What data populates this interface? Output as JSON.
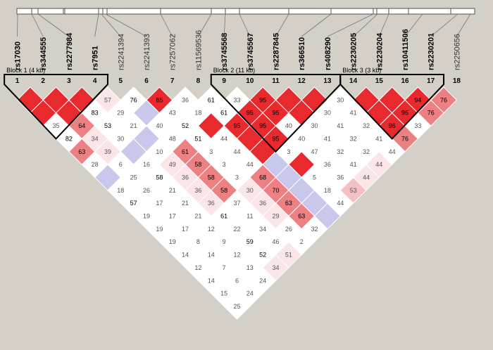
{
  "snps": [
    {
      "name": "rs17030",
      "index": "1",
      "bold": true
    },
    {
      "name": "rs344555",
      "index": "2",
      "bold": true
    },
    {
      "name": "rs2277984",
      "index": "3",
      "bold": true
    },
    {
      "name": "rs7951",
      "index": "4",
      "bold": true
    },
    {
      "name": "rs2241394",
      "index": "5",
      "bold": false
    },
    {
      "name": "rs2241393",
      "index": "6",
      "bold": false
    },
    {
      "name": "rs7257062",
      "index": "7",
      "bold": false
    },
    {
      "name": "rs11569536",
      "index": "8",
      "bold": false
    },
    {
      "name": "rs3745568",
      "index": "9",
      "bold": true
    },
    {
      "name": "rs3745567",
      "index": "10",
      "bold": true
    },
    {
      "name": "rs2287845",
      "index": "11",
      "bold": true
    },
    {
      "name": "rs366510",
      "index": "12",
      "bold": true
    },
    {
      "name": "rs408290",
      "index": "13",
      "bold": true
    },
    {
      "name": "rs2230205",
      "index": "14",
      "bold": true
    },
    {
      "name": "rs2230204",
      "index": "15",
      "bold": true
    },
    {
      "name": "rs10411506",
      "index": "16",
      "bold": true
    },
    {
      "name": "rs2230201",
      "index": "17",
      "bold": true
    },
    {
      "name": "rs2250656",
      "index": "18",
      "bold": false
    }
  ],
  "blocks": [
    {
      "label": "Block 1 (4 kb)",
      "from": 1,
      "to": 4
    },
    {
      "label": "Block 2 (11 kb)",
      "from": 9,
      "to": 13
    },
    {
      "label": "Block 3 (3 kb)",
      "from": 14,
      "to": 17
    }
  ],
  "colors": {
    "strong": "#e8292e",
    "medium": "#ed8082",
    "light": "#f4c0c2",
    "faint": "#fbe6e7",
    "blue": "#c7c8ec",
    "white": "#ffffff",
    "background": "#d4d0c8"
  },
  "chart_data": {
    "type": "heatmap",
    "title": "",
    "cells": [
      {
        "i": 1,
        "j": 2,
        "value": "",
        "color": "strong"
      },
      {
        "i": 2,
        "j": 3,
        "value": "",
        "color": "strong"
      },
      {
        "i": 3,
        "j": 4,
        "value": "",
        "color": "strong"
      },
      {
        "i": 4,
        "j": 5,
        "value": "57",
        "color": "faint"
      },
      {
        "i": 5,
        "j": 6,
        "value": "76",
        "color": "white"
      },
      {
        "i": 6,
        "j": 7,
        "value": "85",
        "color": "strong"
      },
      {
        "i": 7,
        "j": 8,
        "value": "36",
        "color": "white"
      },
      {
        "i": 8,
        "j": 9,
        "value": "61",
        "color": "white"
      },
      {
        "i": 9,
        "j": 10,
        "value": "33",
        "color": "white"
      },
      {
        "i": 10,
        "j": 11,
        "value": "95",
        "color": "strong"
      },
      {
        "i": 11,
        "j": 12,
        "value": "",
        "color": "strong"
      },
      {
        "i": 12,
        "j": 13,
        "value": "",
        "color": "strong"
      },
      {
        "i": 13,
        "j": 14,
        "value": "30",
        "color": "white"
      },
      {
        "i": 14,
        "j": 15,
        "value": "",
        "color": "strong"
      },
      {
        "i": 15,
        "j": 16,
        "value": "",
        "color": "strong"
      },
      {
        "i": 16,
        "j": 17,
        "value": "94",
        "color": "strong"
      },
      {
        "i": 17,
        "j": 18,
        "value": "76",
        "color": "medium"
      },
      {
        "i": 1,
        "j": 3,
        "value": "",
        "color": "strong"
      },
      {
        "i": 2,
        "j": 4,
        "value": "",
        "color": "strong"
      },
      {
        "i": 3,
        "j": 5,
        "value": "83",
        "color": "white"
      },
      {
        "i": 4,
        "j": 6,
        "value": "29",
        "color": "white"
      },
      {
        "i": 5,
        "j": 7,
        "value": "",
        "color": "blue"
      },
      {
        "i": 6,
        "j": 8,
        "value": "43",
        "color": "white"
      },
      {
        "i": 7,
        "j": 9,
        "value": "18",
        "color": "white"
      },
      {
        "i": 8,
        "j": 10,
        "value": "61",
        "color": "white"
      },
      {
        "i": 9,
        "j": 11,
        "value": "95",
        "color": "strong"
      },
      {
        "i": 10,
        "j": 12,
        "value": "95",
        "color": "strong"
      },
      {
        "i": 11,
        "j": 13,
        "value": "",
        "color": "strong"
      },
      {
        "i": 12,
        "j": 14,
        "value": "30",
        "color": "white"
      },
      {
        "i": 13,
        "j": 15,
        "value": "41",
        "color": "white"
      },
      {
        "i": 14,
        "j": 16,
        "value": "",
        "color": "strong"
      },
      {
        "i": 15,
        "j": 17,
        "value": "95",
        "color": "strong"
      },
      {
        "i": 16,
        "j": 18,
        "value": "76",
        "color": "medium"
      },
      {
        "i": 1,
        "j": 4,
        "value": "35",
        "color": "white"
      },
      {
        "i": 2,
        "j": 5,
        "value": "64",
        "color": "medium"
      },
      {
        "i": 3,
        "j": 6,
        "value": "53",
        "color": "white"
      },
      {
        "i": 4,
        "j": 7,
        "value": "21",
        "color": "white"
      },
      {
        "i": 5,
        "j": 8,
        "value": "40",
        "color": "white"
      },
      {
        "i": 6,
        "j": 9,
        "value": "52",
        "color": "white"
      },
      {
        "i": 7,
        "j": 10,
        "value": "",
        "color": "strong"
      },
      {
        "i": 8,
        "j": 11,
        "value": "95",
        "color": "strong"
      },
      {
        "i": 9,
        "j": 12,
        "value": "95",
        "color": "strong"
      },
      {
        "i": 10,
        "j": 13,
        "value": "40",
        "color": "white"
      },
      {
        "i": 11,
        "j": 14,
        "value": "30",
        "color": "white"
      },
      {
        "i": 12,
        "j": 15,
        "value": "41",
        "color": "white"
      },
      {
        "i": 13,
        "j": 16,
        "value": "32",
        "color": "white"
      },
      {
        "i": 14,
        "j": 17,
        "value": "96",
        "color": "strong"
      },
      {
        "i": 15,
        "j": 18,
        "value": "33",
        "color": "white"
      },
      {
        "i": 1,
        "j": 5,
        "value": "82",
        "color": "white"
      },
      {
        "i": 2,
        "j": 6,
        "value": "34",
        "color": "faint"
      },
      {
        "i": 3,
        "j": 7,
        "value": "30",
        "color": "white"
      },
      {
        "i": 4,
        "j": 8,
        "value": "",
        "color": "blue"
      },
      {
        "i": 5,
        "j": 9,
        "value": "48",
        "color": "white"
      },
      {
        "i": 6,
        "j": 10,
        "value": "51",
        "color": "white"
      },
      {
        "i": 7,
        "j": 11,
        "value": "44",
        "color": "white"
      },
      {
        "i": 8,
        "j": 12,
        "value": "",
        "color": "strong"
      },
      {
        "i": 9,
        "j": 13,
        "value": "95",
        "color": "strong"
      },
      {
        "i": 10,
        "j": 14,
        "value": "40",
        "color": "white"
      },
      {
        "i": 11,
        "j": 15,
        "value": "41",
        "color": "white"
      },
      {
        "i": 12,
        "j": 16,
        "value": "32",
        "color": "white"
      },
      {
        "i": 13,
        "j": 17,
        "value": "41",
        "color": "white"
      },
      {
        "i": 14,
        "j": 18,
        "value": "76",
        "color": "medium"
      },
      {
        "i": 1,
        "j": 6,
        "value": "63",
        "color": "medium"
      },
      {
        "i": 2,
        "j": 7,
        "value": "39",
        "color": "faint"
      },
      {
        "i": 3,
        "j": 8,
        "value": "",
        "color": "blue"
      },
      {
        "i": 4,
        "j": 9,
        "value": "10",
        "color": "white"
      },
      {
        "i": 5,
        "j": 10,
        "value": "61",
        "color": "medium"
      },
      {
        "i": 6,
        "j": 11,
        "value": "3",
        "color": "white"
      },
      {
        "i": 7,
        "j": 12,
        "value": "44",
        "color": "white"
      },
      {
        "i": 8,
        "j": 13,
        "value": "",
        "color": "strong"
      },
      {
        "i": 9,
        "j": 14,
        "value": "3",
        "color": "white"
      },
      {
        "i": 10,
        "j": 15,
        "value": "47",
        "color": "white"
      },
      {
        "i": 11,
        "j": 16,
        "value": "32",
        "color": "white"
      },
      {
        "i": 12,
        "j": 17,
        "value": "32",
        "color": "white"
      },
      {
        "i": 13,
        "j": 18,
        "value": "44",
        "color": "white"
      },
      {
        "i": 1,
        "j": 7,
        "value": "28",
        "color": "white"
      },
      {
        "i": 2,
        "j": 8,
        "value": "6",
        "color": "white"
      },
      {
        "i": 3,
        "j": 9,
        "value": "16",
        "color": "white"
      },
      {
        "i": 4,
        "j": 10,
        "value": "49",
        "color": "faint"
      },
      {
        "i": 5,
        "j": 11,
        "value": "58",
        "color": "medium"
      },
      {
        "i": 6,
        "j": 12,
        "value": "3",
        "color": "white"
      },
      {
        "i": 7,
        "j": 13,
        "value": "44",
        "color": "white"
      },
      {
        "i": 8,
        "j": 14,
        "value": "",
        "color": "blue"
      },
      {
        "i": 9,
        "j": 15,
        "value": "",
        "color": "strong"
      },
      {
        "i": 10,
        "j": 16,
        "value": "36",
        "color": "white"
      },
      {
        "i": 11,
        "j": 17,
        "value": "41",
        "color": "white"
      },
      {
        "i": 12,
        "j": 18,
        "value": "44",
        "color": "faint"
      },
      {
        "i": 1,
        "j": 8,
        "value": "",
        "color": "blue"
      },
      {
        "i": 2,
        "j": 9,
        "value": "25",
        "color": "white"
      },
      {
        "i": 3,
        "j": 10,
        "value": "58",
        "color": "white"
      },
      {
        "i": 4,
        "j": 11,
        "value": "36",
        "color": "faint"
      },
      {
        "i": 5,
        "j": 12,
        "value": "58",
        "color": "medium"
      },
      {
        "i": 6,
        "j": 13,
        "value": "3",
        "color": "white"
      },
      {
        "i": 7,
        "j": 14,
        "value": "68",
        "color": "medium"
      },
      {
        "i": 8,
        "j": 15,
        "value": "",
        "color": "blue"
      },
      {
        "i": 9,
        "j": 16,
        "value": "5",
        "color": "white"
      },
      {
        "i": 10,
        "j": 17,
        "value": "36",
        "color": "white"
      },
      {
        "i": 11,
        "j": 18,
        "value": "44",
        "color": "faint"
      },
      {
        "i": 1,
        "j": 9,
        "value": "18",
        "color": "white"
      },
      {
        "i": 2,
        "j": 10,
        "value": "26",
        "color": "white"
      },
      {
        "i": 3,
        "j": 11,
        "value": "21",
        "color": "white"
      },
      {
        "i": 4,
        "j": 12,
        "value": "36",
        "color": "faint"
      },
      {
        "i": 5,
        "j": 13,
        "value": "58",
        "color": "medium"
      },
      {
        "i": 6,
        "j": 14,
        "value": "30",
        "color": "faint"
      },
      {
        "i": 7,
        "j": 15,
        "value": "70",
        "color": "medium"
      },
      {
        "i": 8,
        "j": 16,
        "value": "",
        "color": "blue"
      },
      {
        "i": 9,
        "j": 17,
        "value": "18",
        "color": "white"
      },
      {
        "i": 10,
        "j": 18,
        "value": "53",
        "color": "light"
      },
      {
        "i": 1,
        "j": 10,
        "value": "57",
        "color": "white"
      },
      {
        "i": 2,
        "j": 11,
        "value": "17",
        "color": "white"
      },
      {
        "i": 3,
        "j": 12,
        "value": "21",
        "color": "white"
      },
      {
        "i": 4,
        "j": 13,
        "value": "36",
        "color": "faint"
      },
      {
        "i": 5,
        "j": 14,
        "value": "37",
        "color": "white"
      },
      {
        "i": 6,
        "j": 15,
        "value": "36",
        "color": "faint"
      },
      {
        "i": 7,
        "j": 16,
        "value": "63",
        "color": "medium"
      },
      {
        "i": 8,
        "j": 17,
        "value": "",
        "color": "blue"
      },
      {
        "i": 9,
        "j": 18,
        "value": "44",
        "color": "white"
      },
      {
        "i": 1,
        "j": 11,
        "value": "19",
        "color": "white"
      },
      {
        "i": 2,
        "j": 12,
        "value": "17",
        "color": "white"
      },
      {
        "i": 3,
        "j": 13,
        "value": "21",
        "color": "white"
      },
      {
        "i": 4,
        "j": 14,
        "value": "61",
        "color": "white"
      },
      {
        "i": 5,
        "j": 15,
        "value": "11",
        "color": "white"
      },
      {
        "i": 6,
        "j": 16,
        "value": "29",
        "color": "faint"
      },
      {
        "i": 7,
        "j": 17,
        "value": "63",
        "color": "medium"
      },
      {
        "i": 8,
        "j": 18,
        "value": "",
        "color": "blue"
      },
      {
        "i": 1,
        "j": 12,
        "value": "19",
        "color": "white"
      },
      {
        "i": 2,
        "j": 13,
        "value": "17",
        "color": "white"
      },
      {
        "i": 3,
        "j": 14,
        "value": "12",
        "color": "white"
      },
      {
        "i": 4,
        "j": 15,
        "value": "22",
        "color": "white"
      },
      {
        "i": 5,
        "j": 16,
        "value": "34",
        "color": "white"
      },
      {
        "i": 6,
        "j": 17,
        "value": "26",
        "color": "white"
      },
      {
        "i": 7,
        "j": 18,
        "value": "32",
        "color": "white"
      },
      {
        "i": 1,
        "j": 13,
        "value": "19",
        "color": "white"
      },
      {
        "i": 2,
        "j": 14,
        "value": "8",
        "color": "white"
      },
      {
        "i": 3,
        "j": 15,
        "value": "9",
        "color": "white"
      },
      {
        "i": 4,
        "j": 16,
        "value": "59",
        "color": "white"
      },
      {
        "i": 5,
        "j": 17,
        "value": "46",
        "color": "white"
      },
      {
        "i": 6,
        "j": 18,
        "value": "2",
        "color": "white"
      },
      {
        "i": 1,
        "j": 14,
        "value": "14",
        "color": "white"
      },
      {
        "i": 2,
        "j": 15,
        "value": "14",
        "color": "white"
      },
      {
        "i": 3,
        "j": 16,
        "value": "12",
        "color": "white"
      },
      {
        "i": 4,
        "j": 17,
        "value": "52",
        "color": "white"
      },
      {
        "i": 5,
        "j": 18,
        "value": "51",
        "color": "faint"
      },
      {
        "i": 1,
        "j": 15,
        "value": "12",
        "color": "white"
      },
      {
        "i": 2,
        "j": 16,
        "value": "7",
        "color": "white"
      },
      {
        "i": 3,
        "j": 17,
        "value": "13",
        "color": "white"
      },
      {
        "i": 4,
        "j": 18,
        "value": "34",
        "color": "faint"
      },
      {
        "i": 1,
        "j": 16,
        "value": "14",
        "color": "white"
      },
      {
        "i": 2,
        "j": 17,
        "value": "6",
        "color": "white"
      },
      {
        "i": 3,
        "j": 18,
        "value": "24",
        "color": "white"
      },
      {
        "i": 1,
        "j": 17,
        "value": "15",
        "color": "white"
      },
      {
        "i": 2,
        "j": 18,
        "value": "24",
        "color": "white"
      },
      {
        "i": 1,
        "j": 18,
        "value": "25",
        "color": "white"
      }
    ]
  }
}
